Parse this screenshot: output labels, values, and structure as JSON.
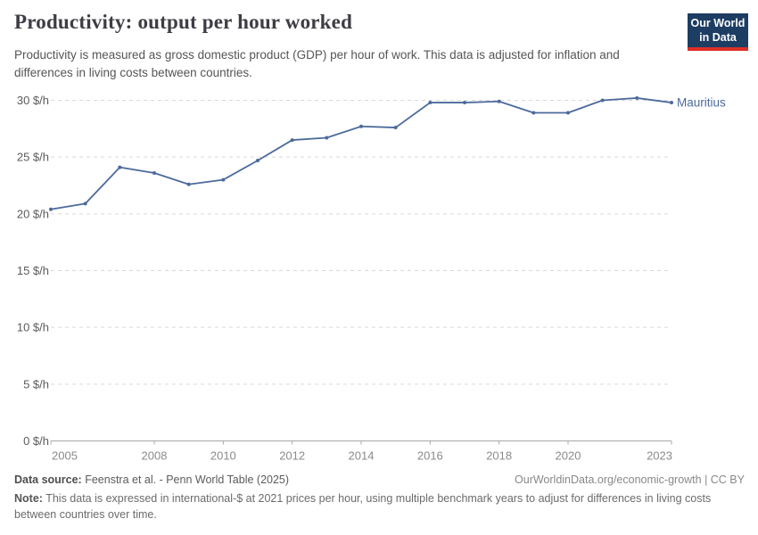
{
  "header": {
    "title": "Productivity: output per hour worked",
    "subtitle": "Productivity is measured as gross domestic product (GDP) per hour of work. This data is adjusted for inflation and differences in living costs between countries.",
    "logo": {
      "line1": "Our World",
      "line2": "in Data",
      "bg_color": "#1d3d63",
      "accent_color": "#dc2e26"
    }
  },
  "chart_data": {
    "type": "line",
    "title": "Productivity: output per hour worked",
    "x": [
      2005,
      2006,
      2007,
      2008,
      2009,
      2010,
      2011,
      2012,
      2013,
      2014,
      2015,
      2016,
      2017,
      2018,
      2019,
      2020,
      2021,
      2022,
      2023
    ],
    "series": [
      {
        "name": "Mauritius",
        "color": "#4C6A9C",
        "values": [
          20.4,
          20.9,
          24.1,
          23.6,
          22.6,
          23.0,
          24.7,
          26.5,
          26.7,
          27.7,
          27.6,
          29.8,
          29.8,
          29.9,
          28.9,
          28.9,
          30.0,
          30.2,
          29.8
        ]
      }
    ],
    "unit": "$/h",
    "ylim": [
      0,
      30
    ],
    "yticks": [
      0,
      5,
      10,
      15,
      20,
      25,
      30
    ],
    "ytick_labels": [
      "0 $/h",
      "5 $/h",
      "10 $/h",
      "15 $/h",
      "20 $/h",
      "25 $/h",
      "30 $/h"
    ],
    "xticks": [
      2005,
      2008,
      2010,
      2012,
      2014,
      2016,
      2018,
      2020,
      2023
    ],
    "grid": "horizontal-dashed",
    "legend_position": "end-of-line"
  },
  "footer": {
    "datasource_label": "Data source:",
    "datasource_text": " Feenstra et al. - Penn World Table (2025)",
    "license_text": "OurWorldinData.org/economic-growth | CC BY",
    "note_label": "Note:",
    "note_text": " This data is expressed in international-$ at 2021 prices per hour, using multiple benchmark years to adjust for differences in living costs between countries over time."
  }
}
